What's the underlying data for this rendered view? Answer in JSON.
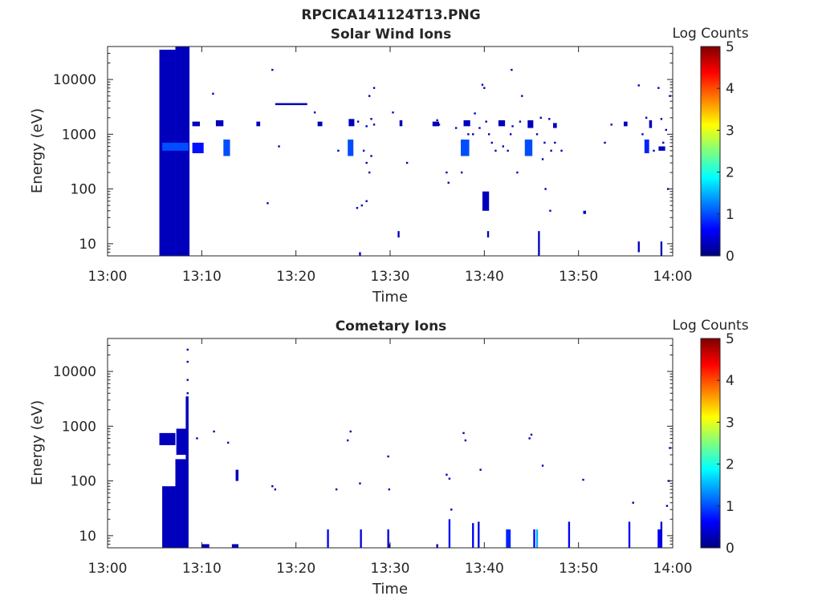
{
  "figure_title": "RPCICA141124T13.PNG",
  "colors": {
    "axis": "#262626",
    "colormap": [
      "#00007f",
      "#0000ff",
      "#007fff",
      "#00ffff",
      "#7fff7f",
      "#ffff00",
      "#ff7f00",
      "#ff0000",
      "#7f0000"
    ]
  },
  "chart_data": [
    {
      "type": "heatmap",
      "title": "Solar Wind Ions",
      "xlabel": "Time",
      "ylabel": "Energy (eV)",
      "x_tick_labels": [
        "13:00",
        "13:10",
        "13:20",
        "13:30",
        "13:40",
        "13:50",
        "14:00"
      ],
      "x_range_minutes": [
        0,
        60
      ],
      "y_scale": "log",
      "y_range": [
        6,
        40000
      ],
      "y_tick_values": [
        10,
        100,
        1000,
        10000
      ],
      "y_tick_labels": [
        "10",
        "100",
        "1000",
        "10000"
      ],
      "colorbar": {
        "label": "Log Counts",
        "range": [
          0,
          5
        ],
        "tick_labels": [
          "0",
          "1",
          "2",
          "3",
          "4",
          "5"
        ]
      },
      "cells": [
        {
          "t0": 5.5,
          "t1": 7.2,
          "e0": 6,
          "e1": 35000,
          "c": 0.3
        },
        {
          "t0": 7.2,
          "t1": 8.7,
          "e0": 6,
          "e1": 40000,
          "c": 0.3
        },
        {
          "t0": 5.8,
          "t1": 8.6,
          "e0": 500,
          "e1": 700,
          "c": 1.0
        },
        {
          "t0": 9.0,
          "t1": 10.2,
          "e0": 450,
          "e1": 700,
          "c": 0.7
        },
        {
          "t0": 9.0,
          "t1": 9.8,
          "e0": 1400,
          "e1": 1700,
          "c": 0.3
        },
        {
          "t0": 11.5,
          "t1": 12.3,
          "e0": 1400,
          "e1": 1800,
          "c": 0.3
        },
        {
          "t0": 12.3,
          "t1": 13.0,
          "e0": 400,
          "e1": 800,
          "c": 1.0
        },
        {
          "t0": 15.8,
          "t1": 16.2,
          "e0": 1400,
          "e1": 1700,
          "c": 0.3
        },
        {
          "t0": 17.8,
          "t1": 21.2,
          "e0": 3400,
          "e1": 3700,
          "c": 0.3
        },
        {
          "t0": 22.3,
          "t1": 22.8,
          "e0": 1400,
          "e1": 1700,
          "c": 0.3
        },
        {
          "t0": 25.5,
          "t1": 26.1,
          "e0": 400,
          "e1": 800,
          "c": 1.0
        },
        {
          "t0": 25.6,
          "t1": 26.2,
          "e0": 1400,
          "e1": 1900,
          "c": 0.3
        },
        {
          "t0": 31.0,
          "t1": 31.3,
          "e0": 1400,
          "e1": 1800,
          "c": 0.3
        },
        {
          "t0": 34.5,
          "t1": 35.2,
          "e0": 1400,
          "e1": 1700,
          "c": 0.3
        },
        {
          "t0": 37.5,
          "t1": 38.4,
          "e0": 400,
          "e1": 800,
          "c": 1.0
        },
        {
          "t0": 37.8,
          "t1": 38.5,
          "e0": 1400,
          "e1": 1800,
          "c": 0.3
        },
        {
          "t0": 41.5,
          "t1": 42.2,
          "e0": 1400,
          "e1": 1800,
          "c": 0.3
        },
        {
          "t0": 44.3,
          "t1": 45.1,
          "e0": 400,
          "e1": 800,
          "c": 1.0
        },
        {
          "t0": 44.6,
          "t1": 45.2,
          "e0": 1300,
          "e1": 1800,
          "c": 0.3
        },
        {
          "t0": 47.3,
          "t1": 47.7,
          "e0": 1300,
          "e1": 1600,
          "c": 0.3
        },
        {
          "t0": 54.8,
          "t1": 55.2,
          "e0": 1400,
          "e1": 1700,
          "c": 0.3
        },
        {
          "t0": 57.0,
          "t1": 57.5,
          "e0": 450,
          "e1": 800,
          "c": 0.8
        },
        {
          "t0": 57.5,
          "t1": 57.8,
          "e0": 1300,
          "e1": 1800,
          "c": 0.3
        },
        {
          "t0": 58.5,
          "t1": 59.2,
          "e0": 500,
          "e1": 600,
          "c": 0.3
        },
        {
          "t0": 26.7,
          "t1": 26.9,
          "e0": 6,
          "e1": 7,
          "c": 0.3
        },
        {
          "t0": 30.8,
          "t1": 31.0,
          "e0": 13,
          "e1": 17,
          "c": 0.3
        },
        {
          "t0": 40.3,
          "t1": 40.5,
          "e0": 13,
          "e1": 17,
          "c": 0.3
        },
        {
          "t0": 45.7,
          "t1": 45.9,
          "e0": 6,
          "e1": 17,
          "c": 0.3
        },
        {
          "t0": 56.3,
          "t1": 56.5,
          "e0": 7,
          "e1": 11,
          "c": 0.3
        },
        {
          "t0": 58.7,
          "t1": 58.9,
          "e0": 6,
          "e1": 11,
          "c": 0.3
        },
        {
          "t0": 50.5,
          "t1": 50.8,
          "e0": 35,
          "e1": 40,
          "c": 0.3
        },
        {
          "t0": 39.8,
          "t1": 40.5,
          "e0": 40,
          "e1": 90,
          "c": 0.3
        }
      ],
      "points": [
        [
          11.2,
          5500
        ],
        [
          17.5,
          15000
        ],
        [
          18.2,
          600
        ],
        [
          17.0,
          55
        ],
        [
          22.0,
          2500
        ],
        [
          24.5,
          500
        ],
        [
          26.6,
          1700
        ],
        [
          27.5,
          1400
        ],
        [
          28.0,
          1900
        ],
        [
          28.3,
          1500
        ],
        [
          27.2,
          500
        ],
        [
          27.8,
          5000
        ],
        [
          28.3,
          7000
        ],
        [
          27.5,
          300
        ],
        [
          27.8,
          200
        ],
        [
          26.5,
          45
        ],
        [
          27.0,
          50
        ],
        [
          27.5,
          60
        ],
        [
          28.0,
          400
        ],
        [
          30.3,
          2500
        ],
        [
          31.8,
          300
        ],
        [
          35.2,
          1500
        ],
        [
          36.0,
          200
        ],
        [
          36.2,
          130
        ],
        [
          37.6,
          200
        ],
        [
          38.8,
          1000
        ],
        [
          39.0,
          2400
        ],
        [
          39.5,
          1300
        ],
        [
          39.8,
          8000
        ],
        [
          40.0,
          7000
        ],
        [
          40.2,
          1700
        ],
        [
          40.5,
          1000
        ],
        [
          40.8,
          700
        ],
        [
          41.2,
          500
        ],
        [
          41.6,
          1600
        ],
        [
          42.0,
          600
        ],
        [
          42.5,
          500
        ],
        [
          42.8,
          1000
        ],
        [
          43.0,
          1400
        ],
        [
          43.5,
          200
        ],
        [
          43.8,
          1700
        ],
        [
          44.0,
          5000
        ],
        [
          42.9,
          15000
        ],
        [
          45.6,
          1000
        ],
        [
          46.0,
          2000
        ],
        [
          46.4,
          700
        ],
        [
          46.2,
          350
        ],
        [
          46.5,
          100
        ],
        [
          46.9,
          1900
        ],
        [
          47.1,
          500
        ],
        [
          47.5,
          700
        ],
        [
          48.2,
          500
        ],
        [
          47.0,
          40
        ],
        [
          52.8,
          700
        ],
        [
          53.5,
          1500
        ],
        [
          56.4,
          7800
        ],
        [
          56.8,
          1000
        ],
        [
          57.2,
          2000
        ],
        [
          58.0,
          500
        ],
        [
          58.5,
          7000
        ],
        [
          58.8,
          1900
        ],
        [
          59.0,
          700
        ],
        [
          59.3,
          1200
        ],
        [
          59.5,
          100
        ],
        [
          59.7,
          5000
        ],
        [
          35.0,
          1800
        ],
        [
          37.0,
          1300
        ],
        [
          38.3,
          1000
        ]
      ]
    },
    {
      "type": "heatmap",
      "title": "Cometary Ions",
      "xlabel": "Time",
      "ylabel": "Energy (eV)",
      "x_tick_labels": [
        "13:00",
        "13:10",
        "13:20",
        "13:30",
        "13:40",
        "13:50",
        "14:00"
      ],
      "x_range_minutes": [
        0,
        60
      ],
      "y_scale": "log",
      "y_range": [
        6,
        40000
      ],
      "y_tick_values": [
        10,
        100,
        1000,
        10000
      ],
      "y_tick_labels": [
        "10",
        "100",
        "1000",
        "10000"
      ],
      "colorbar": {
        "label": "Log Counts",
        "range": [
          0,
          5
        ],
        "tick_labels": [
          "0",
          "1",
          "2",
          "3",
          "4",
          "5"
        ]
      },
      "cells": [
        {
          "t0": 5.5,
          "t1": 7.2,
          "e0": 450,
          "e1": 750,
          "c": 0.3
        },
        {
          "t0": 5.8,
          "t1": 7.2,
          "e0": 6,
          "e1": 80,
          "c": 0.3
        },
        {
          "t0": 7.2,
          "t1": 8.6,
          "e0": 6,
          "e1": 250,
          "c": 0.3
        },
        {
          "t0": 7.3,
          "t1": 8.4,
          "e0": 300,
          "e1": 900,
          "c": 0.3
        },
        {
          "t0": 8.3,
          "t1": 8.6,
          "e0": 250,
          "e1": 3500,
          "c": 0.3
        },
        {
          "t0": 10.0,
          "t1": 10.8,
          "e0": 6,
          "e1": 7,
          "c": 0.3
        },
        {
          "t0": 13.2,
          "t1": 13.9,
          "e0": 6,
          "e1": 7,
          "c": 0.3
        },
        {
          "t0": 13.6,
          "t1": 13.9,
          "e0": 100,
          "e1": 160,
          "c": 0.3
        },
        {
          "t0": 23.3,
          "t1": 23.5,
          "e0": 6,
          "e1": 13,
          "c": 0.6
        },
        {
          "t0": 26.8,
          "t1": 27.0,
          "e0": 6,
          "e1": 13,
          "c": 0.5
        },
        {
          "t0": 29.7,
          "t1": 29.9,
          "e0": 6,
          "e1": 13,
          "c": 0.5
        },
        {
          "t0": 36.2,
          "t1": 36.4,
          "e0": 6,
          "e1": 20,
          "c": 0.7
        },
        {
          "t0": 38.7,
          "t1": 38.9,
          "e0": 6,
          "e1": 17,
          "c": 0.6
        },
        {
          "t0": 39.3,
          "t1": 39.5,
          "e0": 6,
          "e1": 18,
          "c": 0.5
        },
        {
          "t0": 42.3,
          "t1": 42.8,
          "e0": 6,
          "e1": 13,
          "c": 0.8
        },
        {
          "t0": 45.5,
          "t1": 45.7,
          "e0": 6,
          "e1": 13,
          "c": 1.5
        },
        {
          "t0": 45.2,
          "t1": 45.4,
          "e0": 6,
          "e1": 13,
          "c": 0.6
        },
        {
          "t0": 48.9,
          "t1": 49.1,
          "e0": 6,
          "e1": 18,
          "c": 0.6
        },
        {
          "t0": 55.3,
          "t1": 55.5,
          "e0": 6,
          "e1": 18,
          "c": 0.6
        },
        {
          "t0": 58.4,
          "t1": 58.8,
          "e0": 6,
          "e1": 13,
          "c": 0.6
        },
        {
          "t0": 58.7,
          "t1": 58.9,
          "e0": 6,
          "e1": 18,
          "c": 0.4
        },
        {
          "t0": 34.9,
          "t1": 35.1,
          "e0": 6,
          "e1": 7,
          "c": 0.3
        },
        {
          "t0": 29.8,
          "t1": 30.0,
          "e0": 6,
          "e1": 7,
          "c": 0.3
        }
      ],
      "points": [
        [
          9.5,
          600
        ],
        [
          11.3,
          800
        ],
        [
          12.8,
          500
        ],
        [
          17.5,
          80
        ],
        [
          17.8,
          70
        ],
        [
          24.3,
          70
        ],
        [
          25.5,
          550
        ],
        [
          25.8,
          800
        ],
        [
          26.8,
          90
        ],
        [
          29.8,
          280
        ],
        [
          29.9,
          70
        ],
        [
          36.0,
          130
        ],
        [
          36.3,
          110
        ],
        [
          36.5,
          30
        ],
        [
          37.8,
          750
        ],
        [
          38.0,
          550
        ],
        [
          39.6,
          160
        ],
        [
          44.8,
          600
        ],
        [
          45.0,
          700
        ],
        [
          46.2,
          190
        ],
        [
          50.5,
          105
        ],
        [
          55.8,
          40
        ],
        [
          59.4,
          35
        ],
        [
          59.6,
          100
        ],
        [
          59.7,
          400
        ],
        [
          8.5,
          25000
        ],
        [
          8.5,
          15000
        ],
        [
          8.5,
          7000
        ],
        [
          8.5,
          4000
        ]
      ]
    }
  ]
}
